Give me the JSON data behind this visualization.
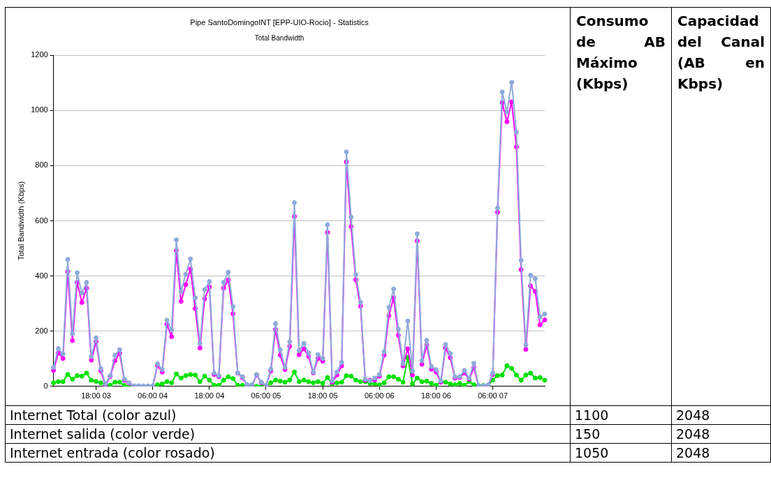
{
  "chart_data": [
    {
      "type": "line",
      "title": "Pipe SantoDomingoINT [EPP-UIO-Rocio] - Statistics",
      "subtitle": "Total Bandwidth",
      "ylabel": "Total Bandwidth (Kbps)",
      "categories": [
        null,
        null,
        null,
        null,
        null,
        null,
        null,
        null,
        null,
        "18:00 03",
        null,
        null,
        null,
        null,
        null,
        null,
        null,
        null,
        null,
        null,
        null,
        "06:00 04",
        null,
        null,
        null,
        null,
        null,
        null,
        null,
        null,
        null,
        null,
        null,
        "18:00 04",
        null,
        null,
        null,
        null,
        null,
        null,
        null,
        null,
        null,
        null,
        null,
        "06:00 05",
        null,
        null,
        null,
        null,
        null,
        null,
        null,
        null,
        null,
        null,
        null,
        "18:00 05",
        null,
        null,
        null,
        null,
        null,
        null,
        null,
        null,
        null,
        null,
        null,
        "06:00 06",
        null,
        null,
        null,
        null,
        null,
        null,
        null,
        null,
        null,
        null,
        null,
        "18:00 06",
        null,
        null,
        null,
        null,
        null,
        null,
        null,
        null,
        null,
        null,
        null,
        "06:00 07",
        null,
        null,
        null,
        null,
        null,
        null,
        null,
        null,
        null,
        null,
        null
      ],
      "ylim": [
        0,
        1200
      ],
      "yticks": [
        0,
        200,
        400,
        600,
        800,
        1000,
        1200
      ],
      "grid": "y",
      "marker": "circle",
      "line_style": "solid",
      "series": [
        {
          "color": "#8eaadb",
          "values": [
            69,
            137,
            117,
            460,
            191,
            412,
            338,
            377,
            108,
            176,
            65,
            9,
            39,
            113,
            133,
            26,
            13,
            2,
            2,
            2,
            2,
            2,
            82,
            61,
            240,
            205,
            531,
            343,
            406,
            462,
            321,
            156,
            351,
            380,
            48,
            39,
            377,
            414,
            289,
            49,
            35,
            6,
            5,
            43,
            15,
            4,
            63,
            228,
            132,
            69,
            162,
            666,
            130,
            156,
            121,
            52,
            115,
            101,
            586,
            20,
            52,
            87,
            850,
            613,
            405,
            305,
            26,
            20,
            30,
            43,
            126,
            286,
            353,
            208,
            82,
            237,
            56,
            553,
            93,
            167,
            72,
            61,
            20,
            152,
            119,
            35,
            35,
            58,
            30,
            84,
            2,
            2,
            5,
            48,
            646,
            1067,
            994,
            1102,
            922,
            457,
            150,
            403,
            390,
            252,
            262
          ]
        },
        {
          "color": "#ff00ff",
          "values": [
            58,
            121,
            101,
            416,
            166,
            377,
            304,
            356,
            95,
            162,
            56,
            4,
            36,
            93,
            119,
            22,
            11,
            0,
            0,
            0,
            0,
            0,
            75,
            52,
            225,
            180,
            492,
            308,
            369,
            425,
            282,
            139,
            317,
            360,
            43,
            35,
            356,
            386,
            263,
            48,
            32,
            4,
            4,
            41,
            13,
            3,
            56,
            206,
            113,
            61,
            145,
            616,
            115,
            136,
            108,
            49,
            101,
            91,
            558,
            15,
            41,
            74,
            813,
            579,
            386,
            291,
            22,
            22,
            23,
            37,
            113,
            256,
            321,
            185,
            74,
            136,
            41,
            527,
            80,
            150,
            62,
            52,
            15,
            139,
            104,
            30,
            32,
            49,
            26,
            69,
            0,
            0,
            3,
            43,
            631,
            1028,
            959,
            1031,
            868,
            423,
            134,
            364,
            344,
            223,
            241
          ]
        },
        {
          "color": "#00e000",
          "values": [
            13,
            17,
            17,
            43,
            26,
            39,
            37,
            48,
            22,
            18,
            13,
            4,
            4,
            15,
            15,
            3,
            0,
            0,
            0,
            0,
            0,
            0,
            6,
            9,
            17,
            13,
            45,
            30,
            39,
            43,
            41,
            17,
            37,
            23,
            4,
            4,
            22,
            35,
            28,
            4,
            4,
            0,
            0,
            0,
            0,
            0,
            13,
            23,
            19,
            15,
            23,
            52,
            17,
            23,
            17,
            13,
            17,
            11,
            32,
            9,
            13,
            15,
            39,
            37,
            23,
            17,
            17,
            11,
            9,
            6,
            13,
            35,
            35,
            26,
            15,
            104,
            9,
            30,
            17,
            19,
            11,
            4,
            15,
            15,
            9,
            6,
            11,
            4,
            17,
            6,
            3,
            3,
            3,
            23,
            39,
            41,
            75,
            65,
            41,
            22,
            41,
            48,
            30,
            32,
            22
          ]
        }
      ]
    },
    {
      "type": "other",
      "categories": [
        "Internet Total (color azul)",
        "Internet salida (color verde)",
        "Internet entrada (color rosado)"
      ],
      "data_labels": true,
      "series": [
        {
          "name": "Consumo de AB Máximo (Kbps)",
          "values": [
            1100,
            150,
            1050
          ]
        },
        {
          "name": "Capacidad del Canal (AB en Kbps)",
          "values": [
            2048,
            2048,
            2048
          ]
        }
      ]
    }
  ]
}
